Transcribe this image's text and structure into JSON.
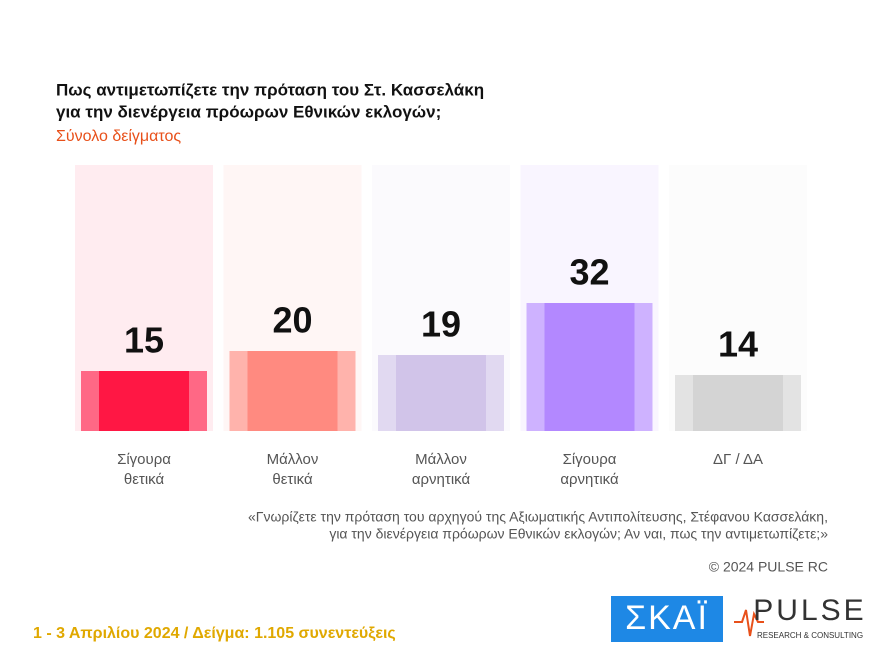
{
  "chart_data": {
    "type": "bar",
    "title": [
      "Πως αντιμετωπίζετε την πρόταση του Στ. Κασσελάκη",
      "για την διενέργεια πρόωρων Εθνικών εκλογών;"
    ],
    "subtitle": "Σύνολο δείγματος",
    "categories": [
      [
        "Σίγουρα",
        "θετικά"
      ],
      [
        "Μάλλον",
        "θετικά"
      ],
      [
        "Μάλλον",
        "αρνητικά"
      ],
      [
        "Σίγουρα",
        "αρνητικά"
      ],
      [
        "ΔΓ / ΔΑ"
      ]
    ],
    "values": [
      15,
      20,
      19,
      32,
      14
    ],
    "colors": [
      "#ff1744",
      "#ff8a80",
      "#d1c4e9",
      "#b388ff",
      "#d4d4d4"
    ],
    "question": [
      "«Γνωρίζετε την πρόταση του αρχηγού της Αξιωματικής Αντιπολίτευσης, Στέφανου Κασσελάκη,",
      "για την διενέργεια πρόωρων Εθνικών εκλογών; Αν ναι, πως την αντιμετωπίζετε;»"
    ],
    "copyright": "© 2024 PULSE RC",
    "footer": "1 - 3  Απριλίου 2024  /  Δείγμα:  1.105 συνεντεύξεις",
    "logos": {
      "skai": "ΣΚΑΪ",
      "pulse": "PULSE",
      "pulse_sub": "RESEARCH & CONSULTING"
    }
  }
}
